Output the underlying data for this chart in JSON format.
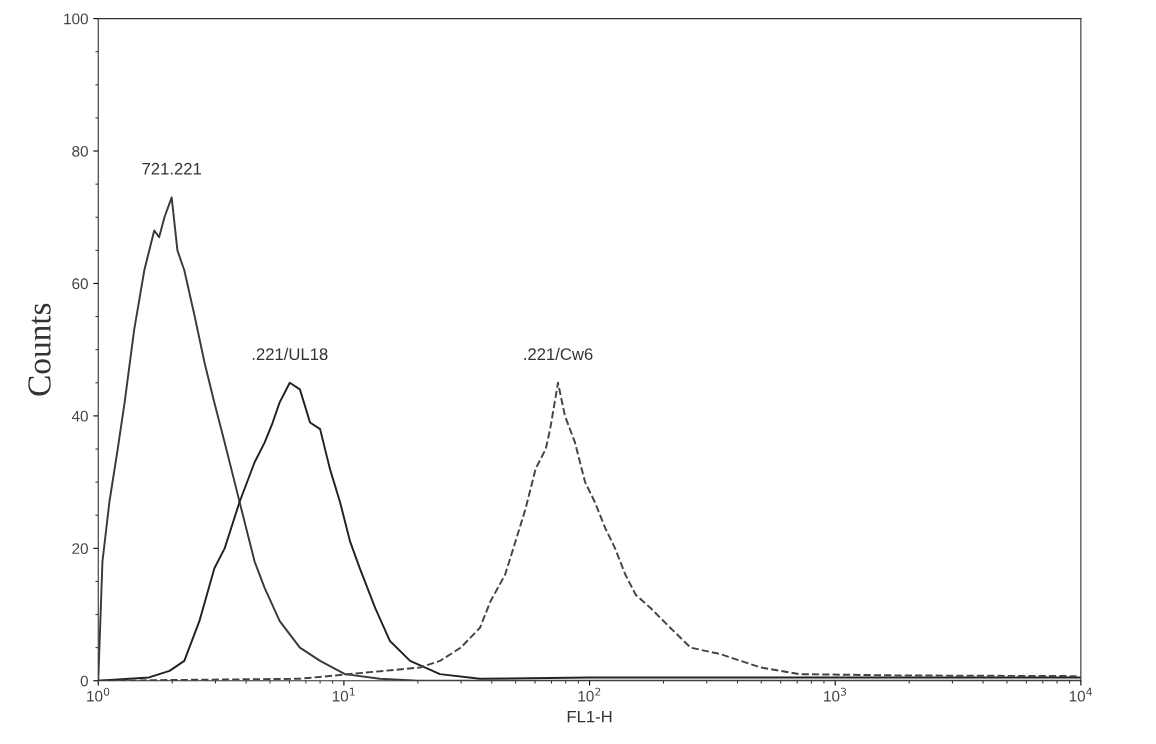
{
  "chart_data": {
    "type": "line",
    "xlabel": "FL1-H",
    "ylabel": "Counts",
    "log": "x",
    "grid": false,
    "legend": false,
    "marker": "none",
    "xlim": [
      1,
      10000
    ],
    "xticks": [
      {
        "value": 1,
        "label": "10$^{0}$"
      },
      {
        "value": 10,
        "label": "10$^{1}$"
      },
      {
        "value": 100,
        "label": "10$^{2}$"
      },
      {
        "value": 1000,
        "label": "10$^{3}$"
      },
      {
        "value": 10000,
        "label": "10$^{4}$"
      }
    ],
    "ylim": [
      0,
      100
    ],
    "yticks": [
      0,
      20,
      40,
      60,
      80,
      100
    ],
    "series": [
      {
        "name": "721.221",
        "color": "#3a3a3a",
        "line_style": "solid",
        "x": [
          1.0,
          1.04,
          1.11,
          1.2,
          1.28,
          1.4,
          1.54,
          1.69,
          1.77,
          1.86,
          1.99,
          2.1,
          2.24,
          2.47,
          2.71,
          2.97,
          3.27,
          3.59,
          3.94,
          4.33,
          4.76,
          5.48,
          6.62,
          8.0,
          10.1,
          14,
          20,
          100,
          1000,
          10000
        ],
        "values": [
          0,
          18,
          27,
          35,
          42,
          53,
          62,
          68,
          67,
          70,
          73,
          65,
          62,
          55,
          48,
          42,
          36,
          30,
          24,
          18,
          14,
          9,
          5,
          3,
          1,
          0.3,
          0,
          0,
          0,
          0
        ]
      },
      {
        "name": ".221/UL18",
        "color": "#222222",
        "line_style": "solid",
        "x": [
          1.0,
          1.61,
          1.95,
          2.24,
          2.58,
          2.97,
          3.27,
          3.76,
          4.33,
          4.76,
          5.13,
          5.47,
          6.02,
          6.62,
          7.28,
          8.0,
          8.77,
          9.64,
          10.6,
          11.6,
          13.4,
          15.4,
          18.6,
          24.6,
          35.8,
          100,
          1000,
          10000
        ],
        "values": [
          0,
          0.5,
          1.5,
          3,
          9,
          17,
          20,
          27,
          33,
          36,
          39,
          42,
          45,
          44,
          39,
          38,
          32,
          27,
          21,
          17,
          11,
          6,
          3,
          1,
          0.3,
          0.5,
          0.5,
          0.5
        ]
      },
      {
        "name": ".221/Cw6",
        "color": "#444444",
        "line_style": "dashed",
        "x": [
          1.0,
          6.6,
          20.4,
          24.6,
          29.9,
          35.8,
          39.5,
          45.3,
          49.9,
          54.9,
          60.3,
          66.3,
          69.1,
          74.4,
          79.4,
          87.2,
          95.9,
          105,
          116,
          127,
          140,
          154,
          177,
          213,
          258,
          343,
          497,
          718,
          1858,
          9600
        ],
        "values": [
          0,
          0.3,
          2,
          3,
          5,
          8,
          12,
          16,
          21,
          26,
          32,
          35,
          38,
          45,
          40,
          36,
          30,
          27,
          23,
          20,
          16,
          13,
          11,
          8,
          5,
          4,
          2,
          1,
          0.8,
          0.7
        ]
      }
    ]
  }
}
